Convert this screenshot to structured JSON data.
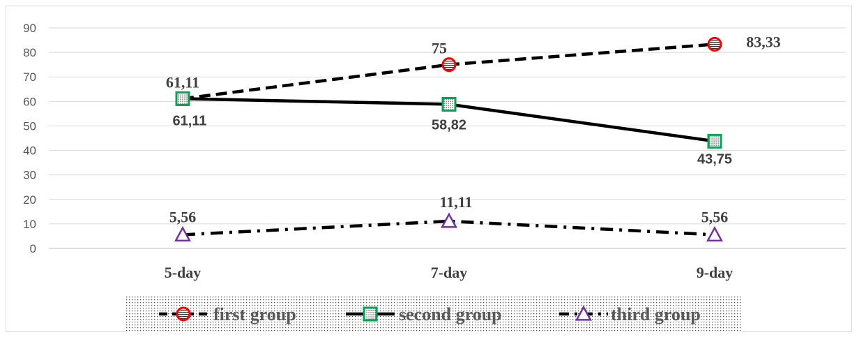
{
  "chart_data": {
    "type": "line",
    "categories": [
      "5-day",
      "7-day",
      "9-day"
    ],
    "ylim": [
      0,
      90
    ],
    "yticks": [
      0,
      10,
      20,
      30,
      40,
      50,
      60,
      70,
      80,
      90
    ],
    "grid": true,
    "legend_position": "bottom",
    "series": [
      {
        "name": "first group",
        "values": [
          61.11,
          75,
          83.33
        ],
        "labels": [
          "61,11",
          "75",
          "83,33"
        ],
        "line_style": "dashed",
        "marker": "circle",
        "marker_color": "#ff0000"
      },
      {
        "name": "second group",
        "values": [
          61.11,
          58.82,
          43.75
        ],
        "labels": [
          "61,11",
          "58,82",
          "43,75"
        ],
        "line_style": "solid",
        "marker": "square",
        "marker_color": "#00a651"
      },
      {
        "name": "third group",
        "values": [
          5.56,
          11.11,
          5.56
        ],
        "labels": [
          "5,56",
          "11,11",
          "5,56"
        ],
        "line_style": "dash-dot",
        "marker": "triangle",
        "marker_color": "#7030a0"
      }
    ]
  }
}
